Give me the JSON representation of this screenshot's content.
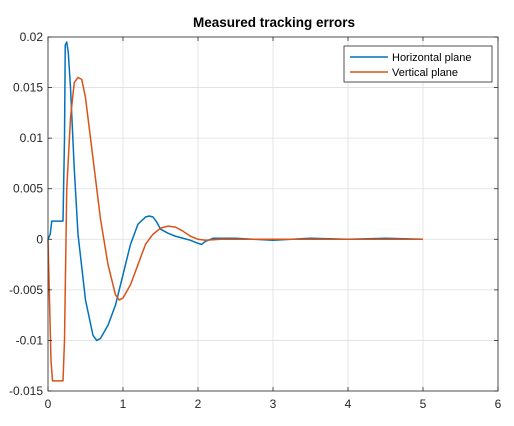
{
  "chart_data": {
    "type": "line",
    "title": "Measured tracking errors",
    "xlabel": "",
    "ylabel": "",
    "xlim": [
      0,
      6
    ],
    "ylim": [
      -0.015,
      0.02
    ],
    "x_ticks": [
      0,
      1,
      2,
      3,
      4,
      5,
      6
    ],
    "x_tick_labels": [
      "0",
      "1",
      "2",
      "3",
      "4",
      "5",
      "6"
    ],
    "y_ticks": [
      -0.015,
      -0.01,
      -0.005,
      0,
      0.005,
      0.01,
      0.015,
      0.02
    ],
    "y_tick_labels": [
      "-0.015",
      "-0.01",
      "-0.005",
      "0",
      "0.005",
      "0.01",
      "0.015",
      "0.02"
    ],
    "grid": true,
    "legend_position": "top-right",
    "series": [
      {
        "name": "Horizontal plane",
        "color": "#0072bd",
        "x": [
          0,
          0.03,
          0.05,
          0.08,
          0.2,
          0.22,
          0.23,
          0.25,
          0.27,
          0.3,
          0.35,
          0.4,
          0.5,
          0.6,
          0.65,
          0.7,
          0.8,
          0.9,
          1.0,
          1.1,
          1.2,
          1.3,
          1.35,
          1.4,
          1.45,
          1.5,
          1.6,
          1.7,
          1.8,
          1.9,
          2.0,
          2.05,
          2.1,
          2.2,
          2.5,
          3.0,
          3.5,
          4.0,
          4.5,
          5.0
        ],
        "y": [
          0,
          0.0005,
          0.0018,
          0.0018,
          0.0018,
          0.01,
          0.0192,
          0.0195,
          0.0185,
          0.015,
          0.007,
          0.0005,
          -0.006,
          -0.0095,
          -0.01,
          -0.0098,
          -0.0085,
          -0.0065,
          -0.0035,
          -0.0005,
          0.0015,
          0.0022,
          0.0023,
          0.0022,
          0.0017,
          0.001,
          0.0006,
          0.0003,
          0.0001,
          -0.0001,
          -0.0004,
          -0.0005,
          -0.0002,
          0.0001,
          0.0001,
          -0.0001,
          0.0001,
          0,
          0.0001,
          0
        ]
      },
      {
        "name": "Vertical plane",
        "color": "#d95319",
        "x": [
          0,
          0.02,
          0.04,
          0.06,
          0.1,
          0.2,
          0.22,
          0.25,
          0.3,
          0.35,
          0.4,
          0.45,
          0.5,
          0.6,
          0.7,
          0.8,
          0.9,
          0.95,
          1.0,
          1.1,
          1.2,
          1.3,
          1.4,
          1.5,
          1.6,
          1.7,
          1.8,
          1.9,
          2.0,
          2.1,
          2.3,
          2.5,
          3.0,
          4.0,
          5.0
        ],
        "y": [
          0,
          -0.006,
          -0.012,
          -0.014,
          -0.014,
          -0.014,
          -0.01,
          0.005,
          0.012,
          0.0155,
          0.016,
          0.0158,
          0.014,
          0.008,
          0.002,
          -0.0025,
          -0.0055,
          -0.006,
          -0.0058,
          -0.0045,
          -0.0025,
          -0.0005,
          0.0005,
          0.0011,
          0.0013,
          0.0012,
          0.0008,
          0.0003,
          0,
          -0.0001,
          0,
          0,
          0,
          0,
          0
        ]
      }
    ]
  }
}
